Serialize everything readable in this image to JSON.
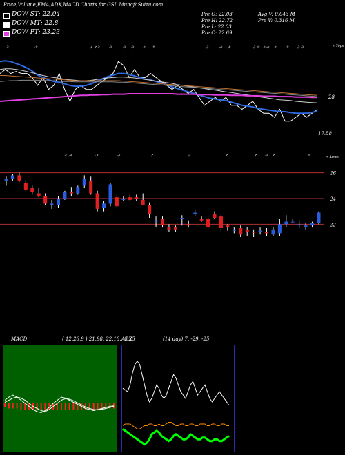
{
  "header": {
    "title": "Price,Volume,EMA,ADX,MACD Charts for GSL",
    "site": "MunafaSutra.com"
  },
  "legend": [
    {
      "label": "DOW ST: 22.04",
      "color": "#000000"
    },
    {
      "label": "DOW MT: 22.8",
      "color": "#ffffff"
    },
    {
      "label": "DOW PT: 23.23",
      "color": "#e040e0"
    }
  ],
  "stats": {
    "prev_open": "Pre   O: 22.03",
    "prev_high": "Pre   H: 22.72",
    "prev_low": "Pre   L: 22.03",
    "prev_close": "Pre   C: 22.69",
    "avg_volume": "Avg V: 0.043  M",
    "prev_volume": "Pre   V: 0.316   M"
  },
  "ema_panel": {
    "top_label": "« Tops",
    "bottom_label": "« Lows",
    "top_date_labels": [
      "7",
      "5",
      "1",
      "1",
      "7",
      "2",
      "2",
      "2",
      "7",
      "5",
      "2",
      "8",
      "8",
      "2",
      "9",
      "7",
      "8",
      "7",
      "5",
      "2",
      "2"
    ],
    "bottom_date_labels": [
      "7",
      "3",
      "3",
      "2",
      "1",
      "2",
      "1",
      "1",
      "2",
      "1",
      "9"
    ],
    "value_labels": [
      {
        "text": "28",
        "value": 28
      },
      {
        "text": "17.58",
        "value": 17.58
      }
    ]
  },
  "chart_data": [
    {
      "type": "line",
      "title": "",
      "description_series": [
        "price",
        "ema_short",
        "ema_mid",
        "ema_long_1",
        "ema_long_2",
        "pink_band"
      ],
      "ylim": [
        14,
        40
      ],
      "series": [
        {
          "role": "price",
          "color": "#ffffff",
          "values": [
            34,
            35,
            34,
            34.5,
            34,
            34,
            33,
            31,
            33,
            30,
            31,
            34,
            30,
            27,
            30,
            31,
            30,
            30,
            31,
            32,
            33,
            34,
            37,
            36,
            33,
            35,
            33,
            33,
            34,
            33,
            32,
            31,
            30,
            31,
            30,
            29,
            30,
            28,
            26,
            27,
            28,
            27,
            28,
            26,
            26,
            25,
            26,
            27,
            25,
            24,
            24,
            23,
            25,
            22,
            22,
            23,
            24,
            23,
            24,
            25
          ]
        },
        {
          "role": "ema_short",
          "color": "#2f6be0",
          "values": [
            37,
            37.2,
            37,
            36.5,
            36,
            35.4,
            34.6,
            33.6,
            33,
            32.4,
            32,
            31.8,
            31.4,
            31,
            30.8,
            30.8,
            31,
            31.4,
            32,
            32.6,
            33.2,
            33.6,
            34,
            34,
            33.8,
            33.4,
            33,
            32.6,
            32.4,
            32,
            31.6,
            31.2,
            30.6,
            30.2,
            29.8,
            29.4,
            29,
            28.6,
            28.2,
            27.8,
            27.6,
            27.4,
            27.2,
            26.8,
            26.4,
            26,
            25.8,
            25.6,
            25.2,
            25,
            24.8,
            24.6,
            24.4,
            24.4,
            24.2,
            24,
            24,
            24,
            24.2,
            24.6
          ]
        },
        {
          "role": "ema_mid",
          "color": "#d0d0d0",
          "values": [
            35,
            35.2,
            35.2,
            35,
            34.8,
            34.5,
            34.2,
            33.8,
            33.5,
            33.2,
            33,
            32.8,
            32.6,
            32.4,
            32.3,
            32.2,
            32.2,
            32.3,
            32.5,
            32.7,
            32.9,
            33,
            33.1,
            33.1,
            33,
            32.9,
            32.7,
            32.5,
            32.3,
            32.1,
            31.9,
            31.7,
            31.5,
            31.2,
            31,
            30.8,
            30.6,
            30.4,
            30.2,
            30,
            29.8,
            29.6,
            29.4,
            29.2,
            29,
            28.8,
            28.6,
            28.4,
            28.2,
            28,
            27.8,
            27.6,
            27.4,
            27.3,
            27.2,
            27,
            26.9,
            26.8,
            26.7,
            26.6
          ]
        },
        {
          "role": "ema_long_1",
          "color": "#c07030",
          "values": [
            33.5,
            33.5,
            33.4,
            33.3,
            33.2,
            33.1,
            33,
            32.9,
            32.8,
            32.7,
            32.6,
            32.5,
            32.4,
            32.3,
            32.2,
            32.2,
            32.2,
            32.2,
            32.2,
            32.2,
            32.2,
            32.2,
            32.2,
            32.1,
            32,
            31.9,
            31.8,
            31.7,
            31.6,
            31.5,
            31.4,
            31.3,
            31.2,
            31.1,
            31,
            30.9,
            30.8,
            30.7,
            30.6,
            30.5,
            30.4,
            30.3,
            30.2,
            30.1,
            30,
            29.9,
            29.8,
            29.7,
            29.6,
            29.5,
            29.4,
            29.3,
            29.2,
            29.1,
            29,
            28.9,
            28.8,
            28.7,
            28.6,
            28.5
          ]
        },
        {
          "role": "ema_long_2",
          "color": "#8a8a8a",
          "values": [
            32,
            32.1,
            32.2,
            32.2,
            32.3,
            32.3,
            32.3,
            32.3,
            32.3,
            32.2,
            32.2,
            32.1,
            32,
            32,
            31.9,
            31.9,
            31.9,
            31.9,
            31.9,
            31.9,
            31.9,
            31.9,
            31.8,
            31.8,
            31.7,
            31.6,
            31.5,
            31.4,
            31.3,
            31.2,
            31.1,
            31,
            30.9,
            30.8,
            30.7,
            30.6,
            30.5,
            30.4,
            30.3,
            30.2,
            30.1,
            30,
            29.9,
            29.8,
            29.7,
            29.6,
            29.5,
            29.4,
            29.3,
            29.2,
            29.1,
            29,
            28.9,
            28.8,
            28.7,
            28.6,
            28.5,
            28.4,
            28.3,
            28.2
          ]
        },
        {
          "role": "pink_band",
          "color": "#e040e0",
          "values": [
            27,
            27.1,
            27.2,
            27.3,
            27.4,
            27.5,
            27.6,
            27.7,
            27.8,
            27.9,
            28,
            28.1,
            28.2,
            28.3,
            28.4,
            28.5,
            28.5,
            28.6,
            28.6,
            28.7,
            28.7,
            28.8,
            28.8,
            28.8,
            28.9,
            28.9,
            28.9,
            28.9,
            28.9,
            28.9,
            28.9,
            28.9,
            28.9,
            28.8,
            28.8,
            28.8,
            28.8,
            28.7,
            28.7,
            28.7,
            28.6,
            28.6,
            28.6,
            28.5,
            28.5,
            28.5,
            28.4,
            28.4,
            28.4,
            28.3,
            28.3,
            28.3,
            28.2,
            28.2,
            28.2,
            28.1,
            28.1,
            28.1,
            28.0,
            28.0
          ]
        }
      ]
    },
    {
      "type": "candlestick",
      "title": "",
      "ylim": [
        19.5,
        27
      ],
      "reference_lines": [
        {
          "text": "26",
          "value": 26
        },
        {
          "text": "24",
          "value": 24
        },
        {
          "text": "22",
          "value": 22
        }
      ],
      "candles": [
        {
          "o": 25.4,
          "h": 25.7,
          "l": 25.0,
          "c": 25.5,
          "dir": "up"
        },
        {
          "o": 25.5,
          "h": 25.9,
          "l": 25.4,
          "c": 25.8,
          "dir": "up"
        },
        {
          "o": 25.8,
          "h": 26.0,
          "l": 25.3,
          "c": 25.4,
          "dir": "down"
        },
        {
          "o": 25.2,
          "h": 25.4,
          "l": 24.6,
          "c": 24.7,
          "dir": "down"
        },
        {
          "o": 24.8,
          "h": 25.0,
          "l": 24.3,
          "c": 24.5,
          "dir": "down"
        },
        {
          "o": 24.4,
          "h": 24.8,
          "l": 24.1,
          "c": 24.2,
          "dir": "down"
        },
        {
          "o": 24.2,
          "h": 24.4,
          "l": 23.5,
          "c": 23.6,
          "dir": "down"
        },
        {
          "o": 23.6,
          "h": 23.9,
          "l": 23.2,
          "c": 23.5,
          "dir": "up"
        },
        {
          "o": 23.5,
          "h": 24.2,
          "l": 23.3,
          "c": 24.0,
          "dir": "up"
        },
        {
          "o": 24.0,
          "h": 24.6,
          "l": 23.9,
          "c": 24.5,
          "dir": "up"
        },
        {
          "o": 24.5,
          "h": 24.9,
          "l": 24.2,
          "c": 24.4,
          "dir": "down"
        },
        {
          "o": 24.4,
          "h": 25.0,
          "l": 24.3,
          "c": 24.9,
          "dir": "up"
        },
        {
          "o": 25.0,
          "h": 25.8,
          "l": 24.8,
          "c": 25.5,
          "dir": "up"
        },
        {
          "o": 25.4,
          "h": 25.7,
          "l": 24.3,
          "c": 24.4,
          "dir": "down"
        },
        {
          "o": 24.4,
          "h": 24.6,
          "l": 23.0,
          "c": 23.2,
          "dir": "down"
        },
        {
          "o": 23.3,
          "h": 23.8,
          "l": 23.0,
          "c": 23.6,
          "dir": "up"
        },
        {
          "o": 23.6,
          "h": 25.2,
          "l": 23.4,
          "c": 25.1,
          "dir": "up"
        },
        {
          "o": 24.1,
          "h": 24.3,
          "l": 23.3,
          "c": 23.4,
          "dir": "down"
        },
        {
          "o": 23.9,
          "h": 24.2,
          "l": 23.8,
          "c": 24.0,
          "dir": "up"
        },
        {
          "o": 24.1,
          "h": 24.3,
          "l": 23.8,
          "c": 23.9,
          "dir": "down"
        },
        {
          "o": 24.1,
          "h": 24.3,
          "l": 23.8,
          "c": 24.0,
          "dir": "down"
        },
        {
          "o": 23.9,
          "h": 24.4,
          "l": 23.5,
          "c": 23.5,
          "dir": "down"
        },
        {
          "o": 23.5,
          "h": 23.7,
          "l": 22.5,
          "c": 22.8,
          "dir": "down"
        },
        {
          "o": 22.2,
          "h": 22.6,
          "l": 21.8,
          "c": 22.3,
          "dir": "up"
        },
        {
          "o": 22.4,
          "h": 22.6,
          "l": 21.8,
          "c": 21.9,
          "dir": "down"
        },
        {
          "o": 21.8,
          "h": 22.0,
          "l": 21.4,
          "c": 21.6,
          "dir": "down"
        },
        {
          "o": 21.6,
          "h": 21.9,
          "l": 21.4,
          "c": 21.8,
          "dir": "down"
        },
        {
          "o": 22.4,
          "h": 22.7,
          "l": 21.9,
          "c": 22.5,
          "dir": "up"
        },
        {
          "o": 22.0,
          "h": 22.3,
          "l": 21.8,
          "c": 21.9,
          "dir": "down"
        },
        {
          "o": 22.8,
          "h": 23.1,
          "l": 22.6,
          "c": 22.9,
          "dir": "up"
        },
        {
          "o": 22.4,
          "h": 22.6,
          "l": 22.2,
          "c": 22.3,
          "dir": "down"
        },
        {
          "o": 22.4,
          "h": 22.6,
          "l": 21.6,
          "c": 21.8,
          "dir": "down"
        },
        {
          "o": 22.8,
          "h": 23.0,
          "l": 22.4,
          "c": 22.5,
          "dir": "down"
        },
        {
          "o": 22.6,
          "h": 22.8,
          "l": 21.4,
          "c": 21.7,
          "dir": "down"
        },
        {
          "o": 21.8,
          "h": 22.0,
          "l": 21.5,
          "c": 21.9,
          "dir": "down"
        },
        {
          "o": 21.5,
          "h": 21.8,
          "l": 21.3,
          "c": 21.6,
          "dir": "up"
        },
        {
          "o": 21.7,
          "h": 21.9,
          "l": 21.0,
          "c": 21.2,
          "dir": "down"
        },
        {
          "o": 21.6,
          "h": 21.8,
          "l": 21.1,
          "c": 21.4,
          "dir": "down"
        },
        {
          "o": 21.4,
          "h": 21.6,
          "l": 21.0,
          "c": 21.4,
          "dir": "down"
        },
        {
          "o": 21.4,
          "h": 21.8,
          "l": 21.2,
          "c": 21.5,
          "dir": "up"
        },
        {
          "o": 21.4,
          "h": 21.7,
          "l": 21.1,
          "c": 21.3,
          "dir": "down"
        },
        {
          "o": 21.2,
          "h": 21.8,
          "l": 21.1,
          "c": 21.6,
          "dir": "up"
        },
        {
          "o": 21.3,
          "h": 22.4,
          "l": 21.1,
          "c": 22.0,
          "dir": "up"
        },
        {
          "o": 22.0,
          "h": 22.7,
          "l": 21.8,
          "c": 22.2,
          "dir": "up"
        },
        {
          "o": 22.2,
          "h": 22.4,
          "l": 22.1,
          "c": 22.2,
          "dir": "up"
        },
        {
          "o": 22.0,
          "h": 22.3,
          "l": 21.7,
          "c": 22.0,
          "dir": "up"
        },
        {
          "o": 21.8,
          "h": 22.1,
          "l": 21.6,
          "c": 21.9,
          "dir": "up"
        },
        {
          "o": 21.9,
          "h": 22.2,
          "l": 21.8,
          "c": 22.1,
          "dir": "up"
        },
        {
          "o": 22.1,
          "h": 23.0,
          "l": 22.0,
          "c": 22.9,
          "dir": "up"
        }
      ]
    },
    {
      "type": "line",
      "title": "MACD",
      "params": "( 12,26,9 ) 21.98, 22.18, -0.25",
      "ylim": [
        -3,
        3
      ],
      "series": [
        {
          "role": "macd",
          "color": "#ffffff",
          "values": [
            0.3,
            0.6,
            0.8,
            0.6,
            0.3,
            0.0,
            -0.3,
            -0.6,
            -0.8,
            -0.9,
            -0.7,
            -0.4,
            0.0,
            0.3,
            0.6,
            0.5,
            0.3,
            0.1,
            -0.1,
            -0.3,
            -0.5,
            -0.6,
            -0.7,
            -0.6,
            -0.5,
            -0.4,
            -0.3,
            -0.25
          ]
        },
        {
          "role": "signal",
          "color": "#ffffff",
          "values": [
            0.1,
            0.3,
            0.5,
            0.6,
            0.5,
            0.3,
            0.0,
            -0.3,
            -0.5,
            -0.7,
            -0.8,
            -0.6,
            -0.3,
            0.0,
            0.3,
            0.45,
            0.4,
            0.25,
            0.05,
            -0.15,
            -0.35,
            -0.5,
            -0.6,
            -0.62,
            -0.58,
            -0.5,
            -0.4,
            -0.3
          ]
        },
        {
          "role": "histogram",
          "color": "#ff2020",
          "values": [
            -0.4,
            -0.5,
            -0.5,
            -0.5,
            -0.6,
            -0.6,
            -0.6,
            -0.6,
            -0.6,
            -0.6,
            -0.6,
            -0.6,
            -0.6,
            -0.6,
            -0.6,
            -0.6,
            -0.6,
            -0.6,
            -0.6,
            -0.6,
            -0.6,
            -0.6,
            -0.6,
            -0.6,
            -0.6,
            -0.5,
            -0.5,
            -0.5
          ]
        }
      ]
    },
    {
      "type": "line",
      "title": "ADX",
      "params": "(14 day) 7, -29, -25",
      "ylim": [
        0,
        60
      ],
      "series": [
        {
          "role": "di_plus",
          "color": "#ffffff",
          "values": [
            36,
            35,
            34,
            38,
            45,
            50,
            52,
            50,
            44,
            38,
            32,
            28,
            30,
            34,
            38,
            36,
            32,
            30,
            32,
            36,
            40,
            44,
            42,
            38,
            34,
            32,
            30,
            34,
            38,
            40,
            36,
            32,
            34,
            36,
            38,
            34,
            30,
            28,
            30,
            32,
            34,
            32,
            30,
            28,
            26
          ]
        },
        {
          "role": "di_minus",
          "color": "#ff8c00",
          "values": [
            14,
            15,
            15,
            15,
            14,
            13,
            12,
            12,
            13,
            14,
            14,
            15,
            15,
            14,
            14,
            15,
            14,
            14,
            15,
            16,
            16,
            15,
            14,
            14,
            15,
            15,
            14,
            14,
            15,
            15,
            14,
            14,
            15,
            15,
            15,
            14,
            14,
            15,
            15,
            14,
            14,
            15,
            15,
            14,
            14
          ]
        },
        {
          "role": "adx",
          "color": "#00ff00",
          "values": [
            12,
            11,
            10,
            9,
            8,
            7,
            6,
            5,
            4,
            3,
            4,
            6,
            9,
            10,
            11,
            10,
            8,
            7,
            6,
            5,
            6,
            8,
            9,
            8,
            7,
            6,
            6,
            7,
            9,
            8,
            7,
            6,
            6,
            7,
            7,
            6,
            5,
            5,
            6,
            6,
            5,
            5,
            6,
            7,
            8
          ]
        }
      ]
    }
  ]
}
